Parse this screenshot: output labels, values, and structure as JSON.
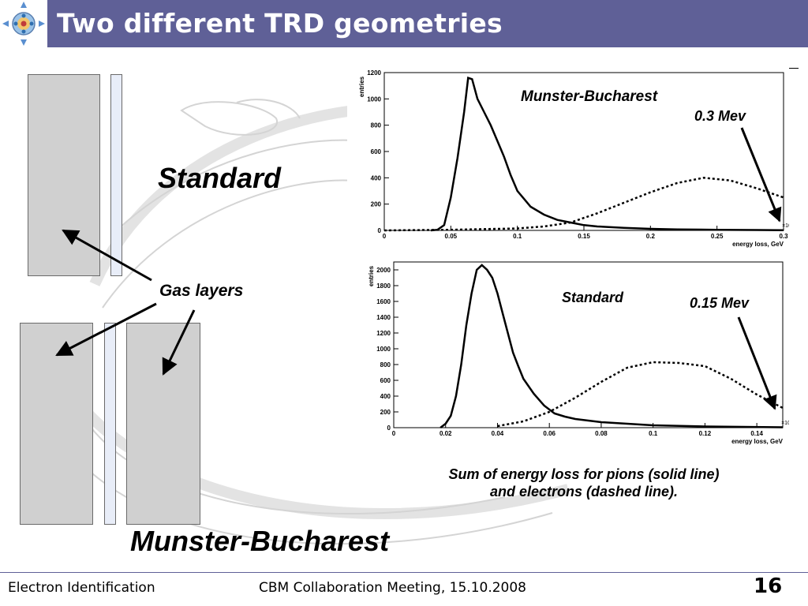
{
  "title": "Two different TRD geometries",
  "labels": {
    "standard": "Standard",
    "gas_layers": "Gas layers",
    "munster_bucharest": "Munster-Bucharest"
  },
  "plot_top": {
    "title": "Munster-Bucharest",
    "annotation": "0.3 Mev",
    "ylabel": "entries",
    "xlabel": "energy loss, GeV",
    "x_multiplier": "×10⁻³",
    "yticks": [
      "0",
      "200",
      "400",
      "600",
      "800",
      "1000",
      "1200"
    ],
    "xticks": [
      "0",
      "0.05",
      "0.1",
      "0.15",
      "0.2",
      "0.25",
      "0.3"
    ]
  },
  "plot_bottom": {
    "title": "Standard",
    "annotation": "0.15 Mev",
    "ylabel": "entries",
    "xlabel": "energy loss, GeV",
    "x_multiplier": "×10⁻³",
    "yticks": [
      "0",
      "200",
      "400",
      "600",
      "800",
      "1000",
      "1200",
      "1400",
      "1600",
      "1800",
      "2000"
    ],
    "xticks": [
      "0",
      "0.02",
      "0.04",
      "0.06",
      "0.08",
      "0.1",
      "0.12",
      "0.14"
    ]
  },
  "caption_line1": "Sum of energy loss for pions (solid line)",
  "caption_line2": "and electrons (dashed line).",
  "footer": {
    "left": "Electron Identification",
    "center": "CBM Collaboration Meeting, 15.10.2008",
    "page": "16"
  },
  "colors": {
    "title_bar": "#5f6097",
    "box": "#d0d0d0",
    "gas": "#e8edf8"
  },
  "chart_data": [
    {
      "type": "line",
      "title": "Munster-Bucharest",
      "xlabel": "energy loss, GeV",
      "ylabel": "entries",
      "xlim": [
        0,
        0.3
      ],
      "ylim": [
        0,
        1200
      ],
      "series": [
        {
          "name": "pions",
          "style": "solid",
          "x": [
            0.035,
            0.04,
            0.045,
            0.05,
            0.055,
            0.06,
            0.063,
            0.066,
            0.07,
            0.075,
            0.08,
            0.085,
            0.09,
            0.095,
            0.1,
            0.11,
            0.12,
            0.13,
            0.14,
            0.15,
            0.16,
            0.18,
            0.2,
            0.22,
            0.25,
            0.28,
            0.3
          ],
          "y": [
            0,
            5,
            40,
            250,
            550,
            900,
            1160,
            1150,
            1000,
            900,
            800,
            680,
            560,
            420,
            300,
            180,
            120,
            80,
            60,
            40,
            30,
            20,
            12,
            8,
            5,
            3,
            2
          ]
        },
        {
          "name": "electrons",
          "style": "dashed",
          "x": [
            0.0,
            0.05,
            0.1,
            0.12,
            0.14,
            0.16,
            0.18,
            0.2,
            0.22,
            0.24,
            0.26,
            0.28,
            0.3
          ],
          "y": [
            0,
            5,
            15,
            30,
            60,
            130,
            210,
            290,
            360,
            400,
            380,
            320,
            250
          ]
        }
      ]
    },
    {
      "type": "line",
      "title": "Standard",
      "xlabel": "energy loss, GeV",
      "ylabel": "entries",
      "xlim": [
        0,
        0.15
      ],
      "ylim": [
        0,
        2100
      ],
      "series": [
        {
          "name": "pions",
          "style": "solid",
          "x": [
            0.018,
            0.02,
            0.022,
            0.024,
            0.026,
            0.028,
            0.03,
            0.032,
            0.034,
            0.036,
            0.038,
            0.04,
            0.042,
            0.044,
            0.046,
            0.048,
            0.05,
            0.054,
            0.058,
            0.062,
            0.066,
            0.07,
            0.08,
            0.09,
            0.1,
            0.12,
            0.15
          ],
          "y": [
            0,
            50,
            150,
            400,
            800,
            1300,
            1700,
            2000,
            2060,
            2000,
            1900,
            1700,
            1450,
            1200,
            950,
            780,
            620,
            430,
            280,
            180,
            140,
            110,
            70,
            50,
            30,
            15,
            5
          ]
        },
        {
          "name": "electrons",
          "style": "dashed",
          "x": [
            0.04,
            0.05,
            0.06,
            0.07,
            0.08,
            0.09,
            0.1,
            0.11,
            0.12,
            0.13,
            0.14,
            0.15
          ],
          "y": [
            20,
            80,
            200,
            380,
            580,
            760,
            830,
            820,
            780,
            620,
            420,
            250
          ]
        }
      ]
    }
  ]
}
